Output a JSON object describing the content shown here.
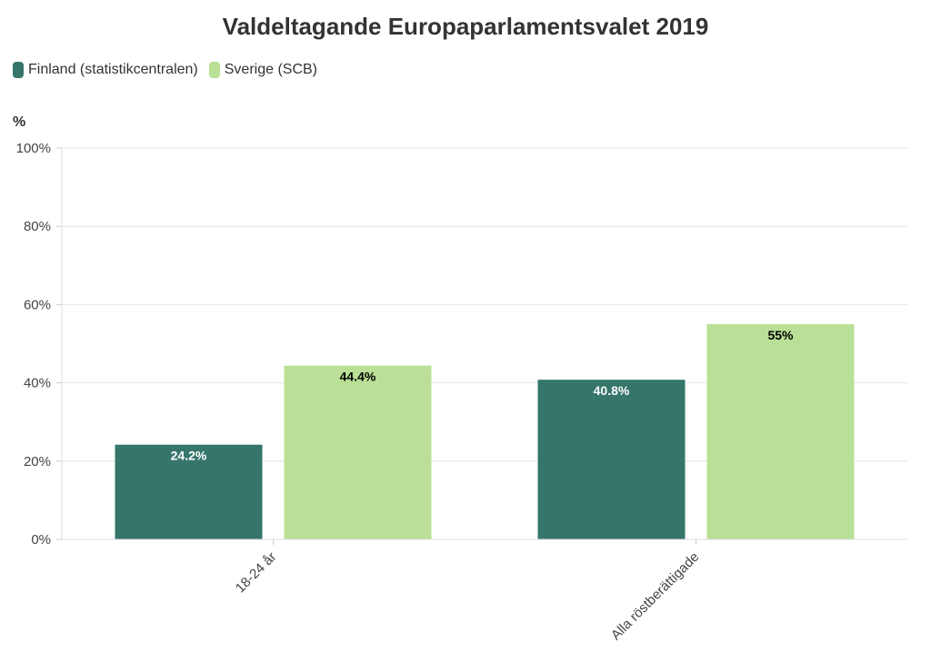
{
  "chart_data": {
    "type": "bar",
    "title": "Valdeltagande Europaparlamentsvalet 2019",
    "ylabel": "%",
    "categories": [
      "18-24 år",
      "Alla röstberättigade"
    ],
    "series": [
      {
        "name": "Finland (statistikcentralen)",
        "values": [
          24.2,
          40.8
        ],
        "labels": [
          "24.2%",
          "40.8%"
        ],
        "color": "#36766a",
        "label_color": "#ffffff"
      },
      {
        "name": "Sverige (SCB)",
        "values": [
          44.4,
          55
        ],
        "labels": [
          "44.4%",
          "55%"
        ],
        "color": "#b9e096",
        "label_color": "#000000"
      }
    ],
    "ylim": [
      0,
      100
    ],
    "yticks": [
      0,
      20,
      40,
      60,
      80,
      100
    ],
    "ytick_labels": [
      "0%",
      "20%",
      "40%",
      "60%",
      "80%",
      "100%"
    ],
    "grid": true,
    "legend_position": "top-left"
  }
}
